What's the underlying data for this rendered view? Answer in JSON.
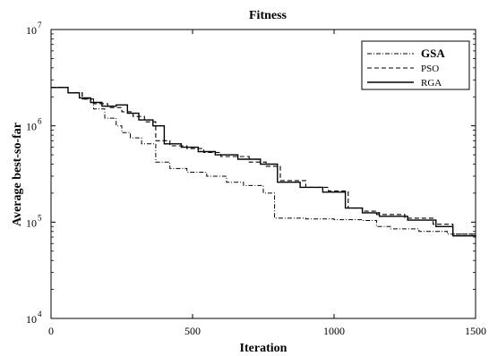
{
  "chart_data": {
    "type": "line",
    "title": "Fitness",
    "xlabel": "Iteration",
    "ylabel": "Average best-so-far",
    "xlim": [
      0,
      1500
    ],
    "ylim": [
      10000,
      10000000
    ],
    "yscale": "log",
    "grid": false,
    "legend_position": "top-right",
    "x_ticks": [
      {
        "value": 0,
        "label": "0"
      },
      {
        "value": 500,
        "label": "500"
      },
      {
        "value": 1000,
        "label": "1000"
      },
      {
        "value": 1500,
        "label": "1500"
      }
    ],
    "y_ticks": [
      {
        "value": 10000,
        "base": "10",
        "exp": "4"
      },
      {
        "value": 100000,
        "base": "10",
        "exp": "5"
      },
      {
        "value": 1000000,
        "base": "10",
        "exp": "6"
      },
      {
        "value": 10000000,
        "base": "10",
        "exp": "7"
      }
    ],
    "series": [
      {
        "name": "GSA",
        "style": "dashdot",
        "x": [
          0,
          60,
          110,
          150,
          190,
          230,
          250,
          280,
          320,
          370,
          420,
          480,
          550,
          620,
          680,
          750,
          790,
          900,
          1000,
          1100,
          1150,
          1200,
          1300,
          1400,
          1500
        ],
        "y": [
          2500000,
          2200000,
          1900000,
          1500000,
          1200000,
          1000000,
          850000,
          750000,
          650000,
          420000,
          360000,
          330000,
          300000,
          260000,
          240000,
          200000,
          110000,
          108000,
          106000,
          104000,
          90000,
          85000,
          80000,
          75000,
          70000
        ]
      },
      {
        "name": "PSO",
        "style": "dashed",
        "x": [
          0,
          60,
          110,
          150,
          200,
          250,
          290,
          330,
          370,
          420,
          480,
          540,
          600,
          700,
          760,
          810,
          900,
          980,
          1050,
          1100,
          1150,
          1250,
          1350,
          1420,
          1500
        ],
        "y": [
          2500000,
          2200000,
          1900000,
          1700000,
          1550000,
          1400000,
          1250000,
          1100000,
          700000,
          620000,
          580000,
          530000,
          480000,
          420000,
          380000,
          270000,
          230000,
          210000,
          140000,
          130000,
          120000,
          110000,
          95000,
          75000,
          70000
        ]
      },
      {
        "name": "RGA",
        "style": "solid",
        "x": [
          0,
          60,
          100,
          140,
          180,
          230,
          270,
          310,
          360,
          400,
          460,
          520,
          580,
          660,
          740,
          800,
          880,
          960,
          1040,
          1100,
          1160,
          1260,
          1360,
          1420,
          1500
        ],
        "y": [
          2500000,
          2200000,
          1950000,
          1750000,
          1600000,
          1650000,
          1350000,
          1150000,
          1000000,
          650000,
          600000,
          540000,
          500000,
          450000,
          400000,
          260000,
          230000,
          205000,
          140000,
          125000,
          115000,
          105000,
          90000,
          72000,
          70000
        ]
      }
    ]
  }
}
